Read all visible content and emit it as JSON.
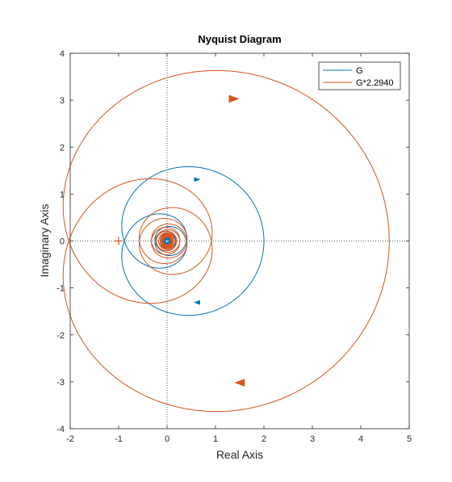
{
  "chart_data": {
    "type": "line",
    "title": "Nyquist Diagram",
    "xlabel": "Real Axis",
    "ylabel": "Imaginary Axis",
    "xlim": [
      -2,
      5
    ],
    "ylim": [
      -4,
      4
    ],
    "xticks": [
      -2,
      -1,
      0,
      1,
      2,
      3,
      4,
      5
    ],
    "yticks": [
      -4,
      -3,
      -2,
      -1,
      0,
      1,
      2,
      3,
      4
    ],
    "grid": false,
    "legend_location": "top-right",
    "critical_point": [
      -1,
      0
    ],
    "series": [
      {
        "name": "G",
        "color": "#0072BD",
        "dc_gain": 2.0,
        "model": "2*exp(-s)/(1+s)",
        "arrow_points": [
          [
            0.62,
            1.31
          ],
          [
            0.62,
            -1.31
          ]
        ]
      },
      {
        "name": "G*2.2940",
        "color": "#D95319",
        "dc_gain": 4.588,
        "model": "4.588*exp(-s)/(1+s)",
        "arrow_points": [
          [
            1.38,
            3.03
          ],
          [
            1.5,
            -3.02
          ]
        ]
      }
    ]
  }
}
